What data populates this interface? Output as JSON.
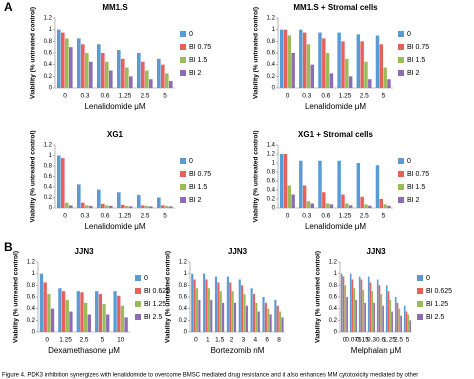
{
  "panel_labels": [
    "A",
    "B"
  ],
  "caption": "Figure 4. PDK3 inhibition synergizes with lenalidomide to overcome BMSC mediated drug resistance and it also enhances MM cytotoxicity mediated by other",
  "chart_data": [
    {
      "type": "bar",
      "title": "MM1.S",
      "categories": [
        "0",
        "0.3",
        "0.6",
        "1.25",
        "2.5",
        "5"
      ],
      "xlabel": "Lenalidomide μM",
      "ylabel": "Viability (% untreated control)",
      "ylim": [
        0,
        1.2
      ],
      "yticks": [
        0,
        0.2,
        0.4,
        0.6,
        0.8,
        1,
        1.2
      ],
      "legend": "right",
      "series": [
        {
          "name": "0",
          "color": "#5b9bd5",
          "values": [
            1,
            0.85,
            0.75,
            0.65,
            0.6,
            0.5
          ]
        },
        {
          "name": "BI  0.75",
          "color": "#e8605c",
          "values": [
            0.95,
            0.75,
            0.6,
            0.5,
            0.45,
            0.4
          ]
        },
        {
          "name": "BI  1.5",
          "color": "#9bbb59",
          "values": [
            0.85,
            0.6,
            0.45,
            0.35,
            0.3,
            0.25
          ]
        },
        {
          "name": "BI  2",
          "color": "#8e6bb5",
          "values": [
            0.7,
            0.45,
            0.3,
            0.2,
            0.15,
            0.12
          ]
        }
      ]
    },
    {
      "type": "bar",
      "title": "MM1.S + Stromal cells",
      "categories": [
        "0",
        "0.3",
        "0.6",
        "1.25",
        "2.5",
        "5"
      ],
      "xlabel": "Lenalidomide μM",
      "ylabel": "Viability (% untreated control)",
      "ylim": [
        0,
        1.2
      ],
      "yticks": [
        0,
        0.2,
        0.4,
        0.6,
        0.8,
        1,
        1.2
      ],
      "legend": "right",
      "series": [
        {
          "name": "0",
          "color": "#5b9bd5",
          "values": [
            1,
            1,
            0.95,
            0.95,
            0.92,
            0.9
          ]
        },
        {
          "name": "BI  0.75",
          "color": "#e8605c",
          "values": [
            1,
            0.95,
            0.85,
            0.8,
            0.8,
            0.75
          ]
        },
        {
          "name": "BI  1.5",
          "color": "#9bbb59",
          "values": [
            0.9,
            0.75,
            0.6,
            0.5,
            0.45,
            0.35
          ]
        },
        {
          "name": "BI  2",
          "color": "#8e6bb5",
          "values": [
            0.6,
            0.4,
            0.25,
            0.2,
            0.15,
            0.15
          ]
        }
      ]
    },
    {
      "type": "bar",
      "title": "XG1",
      "categories": [
        "0",
        "0.3",
        "0.6",
        "1.25",
        "2.5",
        "5"
      ],
      "xlabel": "Lenalidomide μM",
      "ylabel": "Viability (% untreated control)",
      "ylim": [
        0,
        1.2
      ],
      "yticks": [
        0,
        0.2,
        0.4,
        0.6,
        0.8,
        1,
        1.2
      ],
      "legend": "right",
      "series": [
        {
          "name": "0",
          "color": "#5b9bd5",
          "values": [
            1,
            0.45,
            0.35,
            0.3,
            0.25,
            0.2
          ]
        },
        {
          "name": "BI  0.75",
          "color": "#e8605c",
          "values": [
            0.95,
            0.1,
            0.08,
            0.06,
            0.05,
            0.05
          ]
        },
        {
          "name": "BI  1.5",
          "color": "#9bbb59",
          "values": [
            0.1,
            0.05,
            0.05,
            0.04,
            0.04,
            0.04
          ]
        },
        {
          "name": "BI  2",
          "color": "#8e6bb5",
          "values": [
            0.05,
            0.04,
            0.04,
            0.03,
            0.03,
            0.03
          ]
        }
      ]
    },
    {
      "type": "bar",
      "title": "XG1  + Stromal cells",
      "categories": [
        "0",
        "0.3",
        "0.6",
        "1.25",
        "2.5",
        "5"
      ],
      "xlabel": "Lenalidomide μM",
      "ylabel": "Viability (% untreated control)",
      "ylim": [
        0,
        1.4
      ],
      "yticks": [
        0,
        0.2,
        0.4,
        0.6,
        0.8,
        1,
        1.2,
        1.4
      ],
      "legend": "right",
      "series": [
        {
          "name": "0",
          "color": "#5b9bd5",
          "values": [
            1.2,
            1.05,
            1.05,
            1.05,
            1,
            0.95
          ]
        },
        {
          "name": "BI  0.75",
          "color": "#e8605c",
          "values": [
            1.2,
            0.5,
            0.35,
            0.3,
            0.25,
            0.2
          ]
        },
        {
          "name": "BI  1.5",
          "color": "#9bbb59",
          "values": [
            0.5,
            0.15,
            0.1,
            0.1,
            0.08,
            0.08
          ]
        },
        {
          "name": "BI  2",
          "color": "#8e6bb5",
          "values": [
            0.3,
            0.1,
            0.08,
            0.06,
            0.05,
            0.05
          ]
        }
      ]
    },
    {
      "type": "bar",
      "title": "JJN3",
      "categories": [
        "0",
        "1.25",
        "2.5",
        "5",
        "10"
      ],
      "xlabel": "Dexamethasone  μM",
      "ylabel": "Viability (% untreated control)",
      "ylim": [
        0,
        1.2
      ],
      "yticks": [
        0,
        0.2,
        0.4,
        0.6,
        0.8,
        1,
        1.2
      ],
      "legend": "right",
      "series": [
        {
          "name": "0",
          "color": "#5b9bd5",
          "values": [
            1,
            0.75,
            0.7,
            0.7,
            0.7
          ]
        },
        {
          "name": "BI   0.625",
          "color": "#e8605c",
          "values": [
            0.85,
            0.7,
            0.68,
            0.65,
            0.62
          ]
        },
        {
          "name": "BI  1.25",
          "color": "#9bbb59",
          "values": [
            0.65,
            0.55,
            0.5,
            0.48,
            0.45
          ]
        },
        {
          "name": "BI 2.5",
          "color": "#8e6bb5",
          "values": [
            0.4,
            0.35,
            0.3,
            0.3,
            0.25
          ]
        }
      ]
    },
    {
      "type": "bar",
      "title": "JJN3",
      "categories": [
        "0",
        "1",
        "1.5",
        "2",
        "3",
        "4",
        "6",
        "8"
      ],
      "xlabel": "Bortezomib  nM",
      "ylabel": "Viability (% untreated control)",
      "ylim": [
        0,
        1.2
      ],
      "yticks": [
        0,
        0.2,
        0.4,
        0.6,
        0.8,
        1,
        1.2
      ],
      "series": [
        {
          "color": "#5b9bd5",
          "values": [
            1,
            1,
            0.95,
            0.95,
            0.9,
            0.75,
            0.6,
            0.55
          ]
        },
        {
          "color": "#e8605c",
          "values": [
            0.9,
            0.9,
            0.85,
            0.85,
            0.8,
            0.65,
            0.5,
            0.45
          ]
        },
        {
          "color": "#9bbb59",
          "values": [
            0.75,
            0.75,
            0.7,
            0.7,
            0.65,
            0.5,
            0.4,
            0.35
          ]
        },
        {
          "color": "#8e6bb5",
          "values": [
            0.55,
            0.55,
            0.5,
            0.5,
            0.45,
            0.35,
            0.3,
            0.25
          ]
        }
      ]
    },
    {
      "type": "bar",
      "title": "JJN3",
      "categories": [
        "0",
        "0.075",
        "0.15",
        "0.3",
        "0.6",
        "1.25",
        "2.5",
        "5"
      ],
      "xlabel": "Melphalan  μM",
      "ylabel": "Viability (% untreated control)",
      "ylim": [
        0,
        1.2
      ],
      "yticks": [
        0,
        0.2,
        0.4,
        0.6,
        0.8,
        1,
        1.2
      ],
      "legend": "right",
      "series": [
        {
          "name": "0",
          "color": "#5b9bd5",
          "values": [
            1,
            1,
            0.95,
            0.95,
            0.9,
            0.8,
            0.6,
            0.45
          ]
        },
        {
          "name": "BI   0.625",
          "color": "#e8605c",
          "values": [
            0.95,
            0.9,
            0.9,
            0.85,
            0.8,
            0.7,
            0.5,
            0.35
          ]
        },
        {
          "name": "BI  1.25",
          "color": "#9bbb59",
          "values": [
            0.8,
            0.75,
            0.72,
            0.7,
            0.65,
            0.55,
            0.4,
            0.3
          ]
        },
        {
          "name": "BI 2.5",
          "color": "#8e6bb5",
          "values": [
            0.6,
            0.55,
            0.5,
            0.5,
            0.45,
            0.35,
            0.28,
            0.2
          ]
        }
      ]
    }
  ]
}
